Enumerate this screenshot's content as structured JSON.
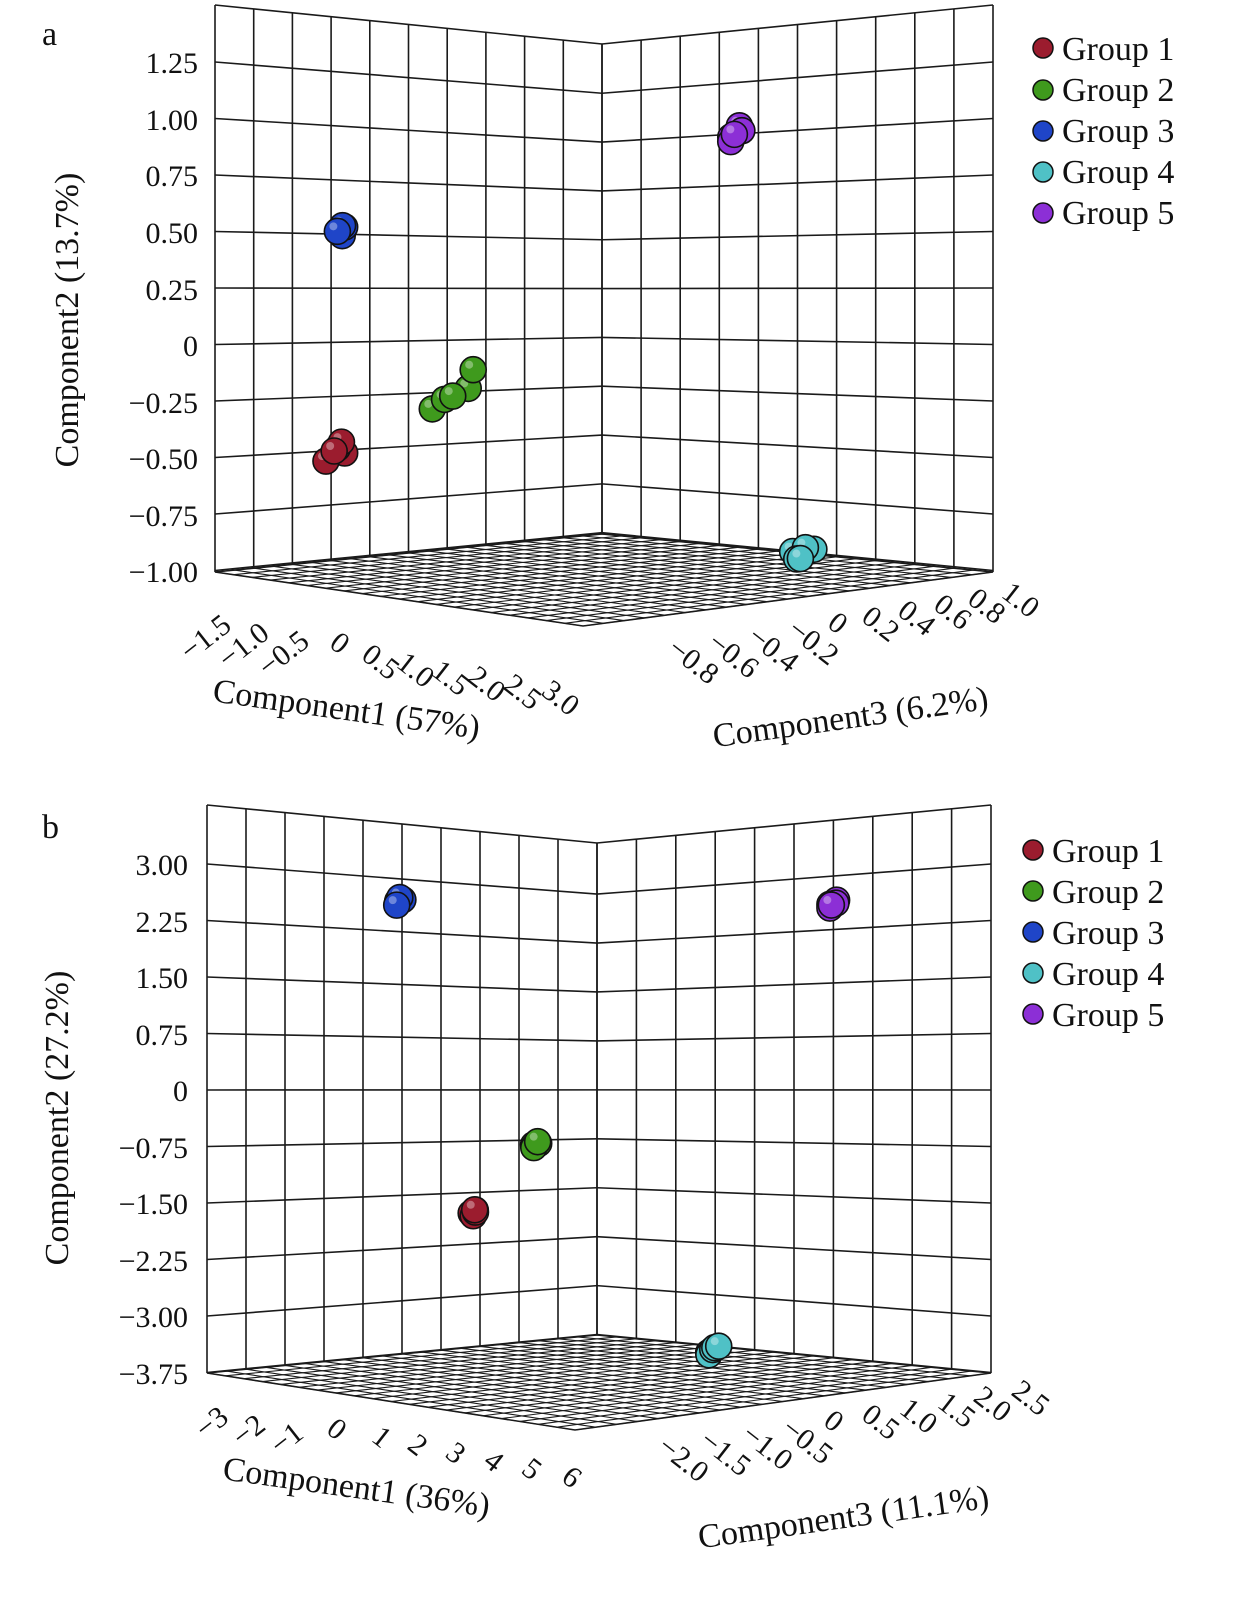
{
  "panels": [
    {
      "label": "a",
      "ylabel": "Component2 (13.7%)",
      "xlabel": "Component1 (57%)",
      "zlabel": "Component3 (6.2%)"
    },
    {
      "label": "b",
      "ylabel": "Component2 (27.2%)",
      "xlabel": "Component1 (36%)",
      "zlabel": "Component3 (11.1%)"
    }
  ],
  "legend": [
    "Group 1",
    "Group 2",
    "Group 3",
    "Group 4",
    "Group 5"
  ],
  "colors": {
    "Group 1": "#9b1c2e",
    "Group 2": "#3f9a1d",
    "Group 3": "#1f45c8",
    "Group 4": "#4fc1c6",
    "Group 5": "#8c2fd6"
  },
  "chart_data": [
    {
      "type": "scatter",
      "projection": "3d",
      "x_ticks": [
        "−1.5",
        "−1.0",
        "−0.5",
        "0",
        "0.5",
        "1.0",
        "1.5",
        "2.0",
        "2.5",
        "3.0"
      ],
      "y_ticks": [
        "1.25",
        "1.00",
        "0.75",
        "0.50",
        "0.25",
        "0",
        "−0.25",
        "−0.50",
        "−0.75",
        "−1.00"
      ],
      "z_ticks": [
        "−0.8",
        "−0.6",
        "−0.4",
        "−0.2",
        "0",
        "0.2",
        "0.4",
        "0.6",
        "0.8",
        "1.0"
      ],
      "xlabel": "Component1 (57%)",
      "ylabel": "Component2 (13.7%)",
      "zlabel": "Component3 (6.2%)",
      "series": [
        {
          "name": "Group 1",
          "points": [
            [
              -0.7,
              -0.45,
              -0.55
            ],
            [
              -0.65,
              -0.42,
              -0.55
            ],
            [
              -0.6,
              -0.45,
              -0.6
            ],
            [
              -0.75,
              -0.48,
              -0.5
            ],
            [
              -0.7,
              -0.5,
              -0.6
            ]
          ]
        },
        {
          "name": "Group 2",
          "points": [
            [
              0.6,
              -0.2,
              -0.6
            ],
            [
              0.75,
              -0.15,
              -0.6
            ],
            [
              0.9,
              -0.1,
              -0.55
            ],
            [
              1.1,
              0.0,
              -0.6
            ],
            [
              0.85,
              -0.13,
              -0.6
            ]
          ]
        },
        {
          "name": "Group 3",
          "points": [
            [
              -0.8,
              0.5,
              -0.5
            ],
            [
              -0.75,
              0.52,
              -0.5
            ],
            [
              -0.7,
              0.51,
              -0.55
            ],
            [
              -0.78,
              0.48,
              -0.5
            ],
            [
              -0.72,
              0.53,
              -0.52
            ]
          ]
        },
        {
          "name": "Group 4",
          "points": [
            [
              2.5,
              -0.85,
              0.3
            ],
            [
              2.6,
              -0.83,
              0.32
            ],
            [
              2.65,
              -0.87,
              0.28
            ],
            [
              2.55,
              -0.88,
              0.3
            ],
            [
              2.62,
              -0.84,
              0.35
            ]
          ]
        },
        {
          "name": "Group 5",
          "points": [
            [
              2.3,
              1.0,
              0.1
            ],
            [
              2.35,
              1.05,
              0.12
            ],
            [
              2.4,
              1.02,
              0.08
            ],
            [
              2.3,
              0.98,
              0.1
            ],
            [
              2.38,
              1.03,
              0.12
            ]
          ]
        }
      ],
      "legend_position": "top-right"
    },
    {
      "type": "scatter",
      "projection": "3d",
      "x_ticks": [
        "−3",
        "−2",
        "−1",
        "0",
        "1",
        "2",
        "3",
        "4",
        "5",
        "6"
      ],
      "y_ticks": [
        "3.00",
        "2.25",
        "1.50",
        "0.75",
        "0",
        "−0.75",
        "−1.50",
        "−2.25",
        "−3.00",
        "−3.75"
      ],
      "z_ticks": [
        "−2.0",
        "−1.5",
        "−1.0",
        "−0.5",
        "0",
        "0.5",
        "1.0",
        "1.5",
        "2.0",
        "2.5"
      ],
      "xlabel": "Component1 (36%)",
      "ylabel": "Component2 (27.2%)",
      "zlabel": "Component3 (11.1%)",
      "series": [
        {
          "name": "Group 1",
          "points": [
            [
              1.2,
              -1.45,
              -1.0
            ],
            [
              1.3,
              -1.4,
              -1.0
            ],
            [
              1.4,
              -1.38,
              -1.05
            ],
            [
              1.25,
              -1.48,
              -1.0
            ],
            [
              1.35,
              -1.42,
              -1.02
            ]
          ]
        },
        {
          "name": "Group 2",
          "points": [
            [
              2.5,
              -0.45,
              -0.9
            ],
            [
              2.6,
              -0.4,
              -0.9
            ],
            [
              2.55,
              -0.48,
              -0.92
            ],
            [
              2.58,
              -0.43,
              -0.88
            ],
            [
              2.52,
              -0.47,
              -0.9
            ]
          ]
        },
        {
          "name": "Group 3",
          "points": [
            [
              -1.5,
              2.4,
              -0.6
            ],
            [
              -1.45,
              2.45,
              -0.6
            ],
            [
              -1.48,
              2.35,
              -0.62
            ],
            [
              -1.42,
              2.42,
              -0.58
            ],
            [
              -1.5,
              2.38,
              -0.6
            ]
          ]
        },
        {
          "name": "Group 4",
          "points": [
            [
              5.2,
              -3.1,
              -0.2
            ],
            [
              5.3,
              -3.05,
              -0.2
            ],
            [
              5.4,
              -3.0,
              -0.18
            ],
            [
              5.25,
              -3.12,
              -0.22
            ],
            [
              5.35,
              -3.02,
              -0.2
            ]
          ]
        },
        {
          "name": "Group 5",
          "points": [
            [
              5.0,
              2.6,
              1.2
            ],
            [
              5.05,
              2.65,
              1.25
            ],
            [
              5.1,
              2.62,
              1.22
            ],
            [
              5.0,
              2.55,
              1.2
            ],
            [
              5.08,
              2.6,
              1.18
            ]
          ]
        }
      ],
      "legend_position": "top-right"
    }
  ]
}
